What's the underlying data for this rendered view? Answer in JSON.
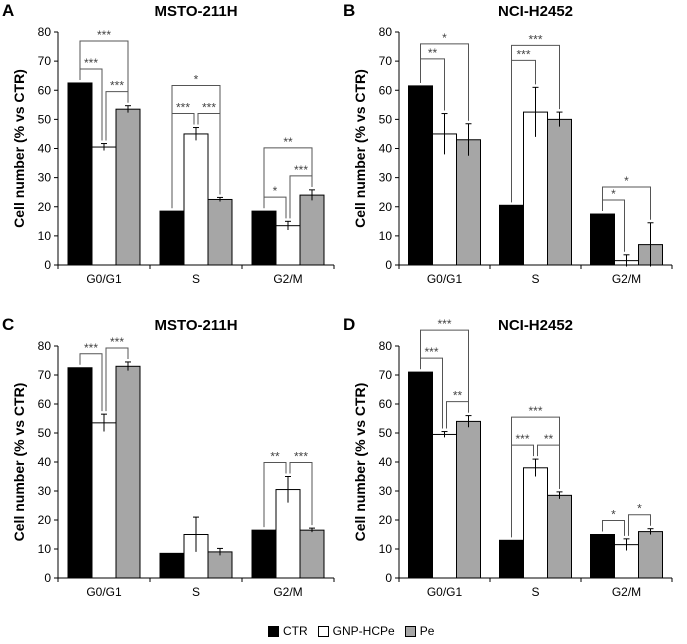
{
  "figure": {
    "colors": {
      "CTR": "#000000",
      "GNP-HCPe": "#ffffff",
      "Pe": "#a6a6a6"
    }
  },
  "legend": {
    "items": [
      {
        "label": "CTR",
        "color": "#000000"
      },
      {
        "label": "GNP-HCPe",
        "color": "#ffffff"
      },
      {
        "label": "Pe",
        "color": "#a6a6a6"
      }
    ]
  },
  "chart_data": [
    {
      "panel": "A",
      "title": "MSTO-211H",
      "type": "bar",
      "ylabel": "Cell number (% vs CTR)",
      "ylim": [
        0,
        80
      ],
      "yticks": [
        0,
        10,
        20,
        30,
        40,
        50,
        60,
        70,
        80
      ],
      "categories": [
        "G0/G1",
        "S",
        "G2/M"
      ],
      "series": [
        {
          "name": "CTR",
          "values": [
            62.5,
            18.5,
            18.5
          ],
          "errors": [
            0,
            0,
            0
          ]
        },
        {
          "name": "GNP-HCPe",
          "values": [
            40.5,
            45,
            13.5
          ],
          "errors": [
            1.2,
            2.2,
            1.5
          ]
        },
        {
          "name": "Pe",
          "values": [
            53.5,
            22.5,
            24
          ],
          "errors": [
            1.2,
            0.7,
            1.8
          ]
        }
      ],
      "annotations": [
        {
          "cat": 0,
          "from": 0,
          "to": 2,
          "label": "***",
          "level": 3
        },
        {
          "cat": 0,
          "from": 0,
          "to": 1,
          "label": "***",
          "level": 1
        },
        {
          "cat": 0,
          "from": 1,
          "to": 2,
          "label": "***",
          "level": 1
        },
        {
          "cat": 1,
          "from": 0,
          "to": 2,
          "label": "*",
          "level": 3
        },
        {
          "cat": 1,
          "from": 0,
          "to": 1,
          "label": "***",
          "level": 1
        },
        {
          "cat": 1,
          "from": 1,
          "to": 2,
          "label": "***",
          "level": 1
        },
        {
          "cat": 2,
          "from": 0,
          "to": 2,
          "label": "**",
          "level": 3
        },
        {
          "cat": 2,
          "from": 0,
          "to": 1,
          "label": "*",
          "level": 1
        },
        {
          "cat": 2,
          "from": 1,
          "to": 2,
          "label": "***",
          "level": 1
        }
      ]
    },
    {
      "panel": "B",
      "title": "NCI-H2452",
      "type": "bar",
      "ylabel": "Cell number (% vs CTR)",
      "ylim": [
        0,
        80
      ],
      "yticks": [
        0,
        10,
        20,
        30,
        40,
        50,
        60,
        70,
        80
      ],
      "categories": [
        "G0/G1",
        "S",
        "G2/M"
      ],
      "series": [
        {
          "name": "CTR",
          "values": [
            61.5,
            20.5,
            17.5
          ],
          "errors": [
            0,
            0,
            0
          ]
        },
        {
          "name": "GNP-HCPe",
          "values": [
            45,
            52.5,
            1.5
          ],
          "errors": [
            7,
            8.5,
            2
          ]
        },
        {
          "name": "Pe",
          "values": [
            43,
            50,
            7
          ],
          "errors": [
            5.5,
            2.5,
            7.5
          ]
        }
      ],
      "annotations": [
        {
          "cat": 0,
          "from": 0,
          "to": 2,
          "label": "*",
          "level": 3
        },
        {
          "cat": 0,
          "from": 0,
          "to": 1,
          "label": "**",
          "level": 2
        },
        {
          "cat": 1,
          "from": 0,
          "to": 2,
          "label": "***",
          "level": 3
        },
        {
          "cat": 1,
          "from": 0,
          "to": 1,
          "label": "***",
          "level": 2
        },
        {
          "cat": 2,
          "from": 0,
          "to": 2,
          "label": "*",
          "level": 2
        },
        {
          "cat": 2,
          "from": 0,
          "to": 1,
          "label": "*",
          "level": 1
        }
      ]
    },
    {
      "panel": "C",
      "title": "MSTO-211H",
      "type": "bar",
      "ylabel": "Cell number (% vs CTR)",
      "ylim": [
        0,
        80
      ],
      "yticks": [
        0,
        10,
        20,
        30,
        40,
        50,
        60,
        70,
        80
      ],
      "categories": [
        "G0/G1",
        "S",
        "G2/M"
      ],
      "series": [
        {
          "name": "CTR",
          "values": [
            72.5,
            8.5,
            16.5
          ],
          "errors": [
            0,
            0,
            0
          ]
        },
        {
          "name": "GNP-HCPe",
          "values": [
            53.5,
            15,
            30.5
          ],
          "errors": [
            3,
            6,
            4.5
          ]
        },
        {
          "name": "Pe",
          "values": [
            73,
            9,
            16.5
          ],
          "errors": [
            1.5,
            1.2,
            0.7
          ]
        }
      ],
      "annotations": [
        {
          "cat": 0,
          "from": 0,
          "to": 1,
          "label": "***",
          "level": 1
        },
        {
          "cat": 0,
          "from": 1,
          "to": 2,
          "label": "***",
          "level": 1
        },
        {
          "cat": 2,
          "from": 0,
          "to": 1,
          "label": "**",
          "level": 1
        },
        {
          "cat": 2,
          "from": 1,
          "to": 2,
          "label": "***",
          "level": 1
        }
      ]
    },
    {
      "panel": "D",
      "title": "NCI-H2452",
      "type": "bar",
      "ylabel": "Cell number (% vs CTR)",
      "ylim": [
        0,
        80
      ],
      "yticks": [
        0,
        10,
        20,
        30,
        40,
        50,
        60,
        70,
        80
      ],
      "categories": [
        "G0/G1",
        "S",
        "G2/M"
      ],
      "series": [
        {
          "name": "CTR",
          "values": [
            71,
            13,
            15
          ],
          "errors": [
            0,
            0,
            0
          ]
        },
        {
          "name": "GNP-HCPe",
          "values": [
            49.5,
            38,
            11.5
          ],
          "errors": [
            1,
            3,
            2
          ]
        },
        {
          "name": "Pe",
          "values": [
            54,
            28.5,
            16
          ],
          "errors": [
            2,
            1.2,
            1
          ]
        }
      ],
      "annotations": [
        {
          "cat": 0,
          "from": 0,
          "to": 2,
          "label": "***",
          "level": 3
        },
        {
          "cat": 0,
          "from": 0,
          "to": 1,
          "label": "***",
          "level": 1
        },
        {
          "cat": 0,
          "from": 1,
          "to": 2,
          "label": "**",
          "level": 1
        },
        {
          "cat": 1,
          "from": 0,
          "to": 2,
          "label": "***",
          "level": 3
        },
        {
          "cat": 1,
          "from": 0,
          "to": 1,
          "label": "***",
          "level": 1
        },
        {
          "cat": 1,
          "from": 1,
          "to": 2,
          "label": "**",
          "level": 1
        },
        {
          "cat": 2,
          "from": 0,
          "to": 1,
          "label": "*",
          "level": 1
        },
        {
          "cat": 2,
          "from": 1,
          "to": 2,
          "label": "*",
          "level": 1
        }
      ]
    }
  ]
}
